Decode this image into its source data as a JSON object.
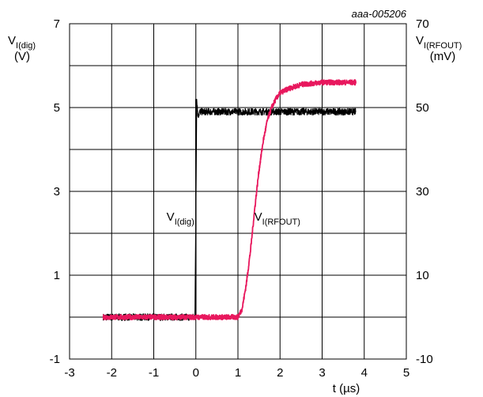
{
  "chart_data": {
    "type": "line",
    "figure_code": "aaa-005206",
    "x_axis": {
      "label": "t (µs)",
      "range": [
        -3,
        5
      ],
      "ticks": [
        "-3",
        "-2",
        "-1",
        "0",
        "1",
        "2",
        "3",
        "4",
        "5"
      ]
    },
    "y_axis_left": {
      "label_main": "V",
      "label_sub": "I(dig)",
      "unit": "(V)",
      "range": [
        -1,
        7
      ],
      "ticks": [
        "-1",
        "1",
        "3",
        "5",
        "7"
      ]
    },
    "y_axis_right": {
      "label_main": "V",
      "label_sub": "I(RFOUT)",
      "unit": "(mV)",
      "range": [
        -10,
        70
      ],
      "ticks": [
        "-10",
        "10",
        "30",
        "50",
        "70"
      ]
    },
    "grid": true,
    "series": [
      {
        "name_main": "V",
        "name_sub": "I(dig)",
        "axis": "left",
        "color": "#000000",
        "x": [
          -2.2,
          -1.6,
          -1.0,
          -0.5,
          -0.02,
          0.0,
          0.02,
          0.05,
          0.1,
          0.5,
          1.0,
          2.0,
          3.0,
          3.8
        ],
        "y": [
          0.0,
          0.0,
          0.0,
          0.0,
          0.0,
          2.5,
          5.2,
          4.8,
          4.9,
          4.9,
          4.9,
          4.9,
          4.9,
          4.9
        ],
        "noise": 0.08
      },
      {
        "name_main": "V",
        "name_sub": "I(RFOUT)",
        "axis": "right",
        "color": "#e8175d",
        "x": [
          -2.2,
          -1.0,
          0.0,
          0.8,
          1.0,
          1.1,
          1.2,
          1.3,
          1.4,
          1.5,
          1.6,
          1.7,
          1.8,
          1.9,
          2.0,
          2.2,
          2.5,
          3.0,
          3.5,
          3.8
        ],
        "y": [
          0.0,
          0.0,
          0.0,
          0.0,
          0.0,
          2.0,
          8.0,
          16.0,
          26.0,
          35.0,
          42.0,
          47.0,
          50.0,
          52.0,
          53.5,
          54.5,
          55.5,
          56.0,
          56.0,
          56.0
        ],
        "noise": 0.6
      }
    ],
    "annotations": [
      {
        "main": "V",
        "sub": "I(dig)",
        "x": 0.0,
        "y": 2.3,
        "axis": "left",
        "anchor": "end"
      },
      {
        "main": "V",
        "sub": "I(RFOUT)",
        "x": 1.35,
        "y": 2.3,
        "axis": "left",
        "anchor": "start"
      }
    ]
  }
}
